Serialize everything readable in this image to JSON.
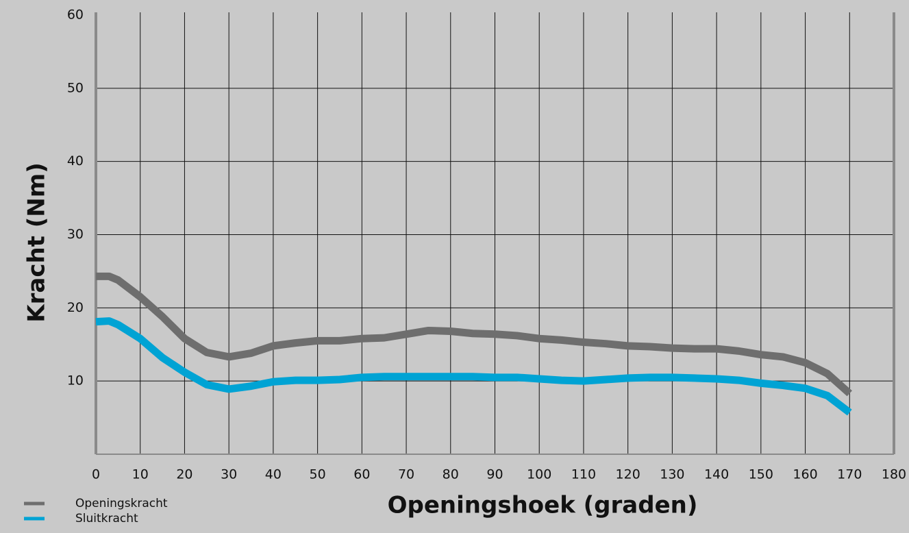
{
  "chart_data": {
    "type": "line",
    "xlabel": "Openingshoek (graden)",
    "ylabel": "Kracht (Nm)",
    "x": [
      0,
      3,
      5,
      10,
      15,
      20,
      25,
      30,
      35,
      40,
      45,
      50,
      55,
      60,
      65,
      70,
      75,
      80,
      85,
      90,
      95,
      100,
      105,
      110,
      115,
      120,
      125,
      130,
      135,
      140,
      145,
      150,
      155,
      160,
      165,
      170
    ],
    "series": [
      {
        "name": "Openingskracht",
        "color": "#6e6e6e",
        "values": [
          24.3,
          24.3,
          23.8,
          21.5,
          18.8,
          15.8,
          13.9,
          13.3,
          13.8,
          14.8,
          15.2,
          15.5,
          15.5,
          15.8,
          15.9,
          16.4,
          16.9,
          16.8,
          16.5,
          16.4,
          16.2,
          15.8,
          15.6,
          15.3,
          15.1,
          14.8,
          14.7,
          14.5,
          14.4,
          14.4,
          14.1,
          13.6,
          13.3,
          12.5,
          11.0,
          8.3
        ]
      },
      {
        "name": "Sluitkracht",
        "color": "#00a3d4",
        "values": [
          18.1,
          18.2,
          17.7,
          15.8,
          13.2,
          11.2,
          9.5,
          8.9,
          9.3,
          9.9,
          10.1,
          10.1,
          10.2,
          10.5,
          10.6,
          10.6,
          10.6,
          10.6,
          10.6,
          10.5,
          10.5,
          10.3,
          10.1,
          10.0,
          10.2,
          10.4,
          10.5,
          10.5,
          10.4,
          10.3,
          10.1,
          9.7,
          9.4,
          9.0,
          8.0,
          5.7
        ]
      }
    ],
    "xlim": [
      0,
      180
    ],
    "xticks": [
      0,
      10,
      20,
      30,
      40,
      50,
      60,
      70,
      80,
      90,
      100,
      110,
      120,
      130,
      140,
      150,
      160,
      170,
      180
    ],
    "ylim": [
      0,
      60
    ],
    "yticks": [
      10,
      20,
      30,
      40,
      50,
      60
    ],
    "grid": true,
    "legend": "bottom-left"
  }
}
